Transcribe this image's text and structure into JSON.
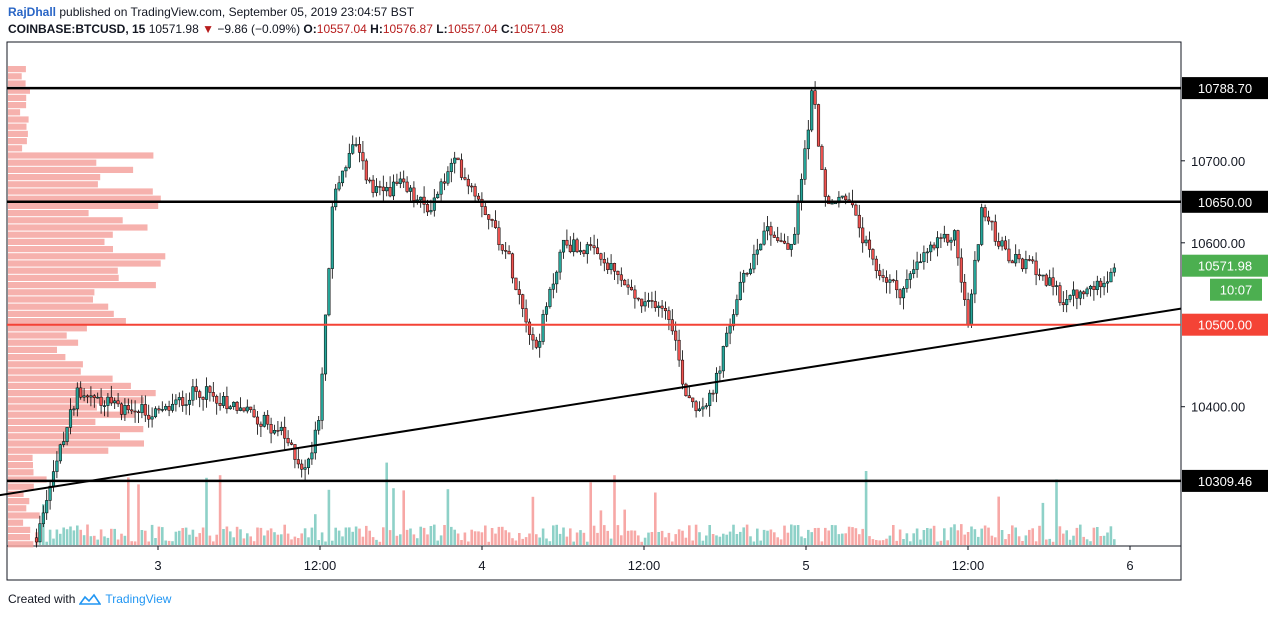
{
  "header": {
    "author": "RajDhall",
    "published_text": " published on TradingView.com, September 05, 2019 23:04:57 BST",
    "symbol": "COINBASE:BTCUSD, 15",
    "last": "10571.98",
    "change": "−9.86 (−0.09%)",
    "o_label": "O:",
    "o_value": "10557.04",
    "h_label": "H:",
    "h_value": "10576.87",
    "l_label": "L:",
    "l_value": "10557.04",
    "c_label": "C:",
    "c_value": "10571.98"
  },
  "footer": {
    "created_with": "Created with",
    "brand": "TradingView"
  },
  "colors": {
    "up": "#26a69a",
    "down": "#ef5350",
    "candle_dark": "#000000",
    "volume_up": "#8ed1c8",
    "volume_down": "#f7a8a6",
    "profile": "#f4a39f",
    "red_line": "#f44336",
    "green_badge": "#4caf50"
  },
  "chart_data": {
    "type": "candlestick",
    "interval": "15",
    "x_ticks": [
      "3",
      "12:00",
      "4",
      "12:00",
      "5",
      "12:00",
      "6"
    ],
    "y_ticks": [
      "10400.00",
      "10600.00",
      "10700.00"
    ],
    "ylim": [
      10230,
      10845
    ],
    "horizontal_levels": [
      {
        "value": 10788.7,
        "label": "10788.70",
        "style": "black"
      },
      {
        "value": 10650.0,
        "label": "10650.00",
        "style": "black"
      },
      {
        "value": 10500.0,
        "label": "10500.00",
        "style": "red"
      },
      {
        "value": 10309.46,
        "label": "10309.46",
        "style": "black"
      }
    ],
    "price_badge": {
      "value": 10571.98,
      "label": "10571.98"
    },
    "countdown_badge": "10:07",
    "trendline": {
      "from": {
        "x": "Sep 02 ~11:30",
        "y": 10290
      },
      "to": {
        "x": "Sep 06 ~02:00",
        "y": 10515
      }
    },
    "close_path": [
      [
        "Sep 02 15:00",
        10240
      ],
      [
        "Sep 02 18:00",
        10420
      ],
      [
        "Sep 02 21:00",
        10400
      ],
      [
        "Sep 03 00:00",
        10390
      ],
      [
        "Sep 03 03:00",
        10420
      ],
      [
        "Sep 03 06:00",
        10400
      ],
      [
        "Sep 03 09:00",
        10370
      ],
      [
        "Sep 03 11:00",
        10320
      ],
      [
        "Sep 03 12:00",
        10400
      ],
      [
        "Sep 03 13:00",
        10660
      ],
      [
        "Sep 03 14:30",
        10720
      ],
      [
        "Sep 03 16:00",
        10660
      ],
      [
        "Sep 03 18:00",
        10670
      ],
      [
        "Sep 03 20:00",
        10640
      ],
      [
        "Sep 03 22:00",
        10700
      ],
      [
        "Sep 04 00:00",
        10650
      ],
      [
        "Sep 04 02:00",
        10580
      ],
      [
        "Sep 04 04:00",
        10470
      ],
      [
        "Sep 04 06:00",
        10600
      ],
      [
        "Sep 04 08:00",
        10590
      ],
      [
        "Sep 04 10:00",
        10560
      ],
      [
        "Sep 04 12:00",
        10520
      ],
      [
        "Sep 04 13:00",
        10530
      ],
      [
        "Sep 04 14:00",
        10510
      ],
      [
        "Sep 04 15:00",
        10420
      ],
      [
        "Sep 04 16:00",
        10400
      ],
      [
        "Sep 04 17:00",
        10410
      ],
      [
        "Sep 04 19:00",
        10540
      ],
      [
        "Sep 04 21:00",
        10620
      ],
      [
        "Sep 04 23:00",
        10590
      ],
      [
        "Sep 05 00:30",
        10790
      ],
      [
        "Sep 05 01:30",
        10640
      ],
      [
        "Sep 05 03:00",
        10660
      ],
      [
        "Sep 05 05:00",
        10570
      ],
      [
        "Sep 05 07:00",
        10540
      ],
      [
        "Sep 05 09:00",
        10590
      ],
      [
        "Sep 05 11:00",
        10610
      ],
      [
        "Sep 05 12:00",
        10500
      ],
      [
        "Sep 05 13:00",
        10640
      ],
      [
        "Sep 05 15:00",
        10580
      ],
      [
        "Sep 05 17:00",
        10570
      ],
      [
        "Sep 05 19:00",
        10530
      ],
      [
        "Sep 05 21:00",
        10540
      ],
      [
        "Sep 05 23:00",
        10572
      ]
    ]
  }
}
